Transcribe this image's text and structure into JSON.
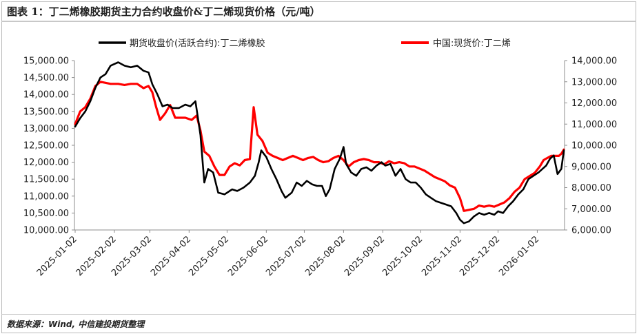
{
  "title": "图表 1：丁二烯橡胶期货主力合约收盘价&丁二烯现货价格（元/吨）",
  "source": "数据来源：Wind, 中信建投期货整理",
  "chart_data": {
    "type": "line",
    "grid": false,
    "legend_placement": "top",
    "x_tick_labels": [
      "2025-01-02",
      "2025-02-02",
      "2025-03-02",
      "2025-04-02",
      "2025-05-02",
      "2025-06-02",
      "2025-07-02",
      "2025-08-02",
      "2025-09-02",
      "2025-10-02",
      "2025-11-02",
      "2025-12-02",
      "2026-01-02"
    ],
    "y_left": {
      "ylim": [
        10000,
        15000
      ],
      "tick_labels": [
        "10,000.00",
        "10,500.00",
        "11,000.00",
        "11,500.00",
        "12,000.00",
        "12,500.00",
        "13,000.00",
        "13,500.00",
        "14,000.00",
        "14,500.00",
        "15,000.00"
      ]
    },
    "y_right": {
      "ylim": [
        6000,
        14000
      ],
      "tick_labels": [
        "6,000.00",
        "7,000.00",
        "8,000.00",
        "9,000.00",
        "10,000.00",
        "11,000.00",
        "12,000.00",
        "13,000.00",
        "14,000.00"
      ]
    },
    "series": [
      {
        "name": "期货收盘价(活跃合约):丁二烯橡胶",
        "color": "#000000",
        "axis": "left",
        "points": [
          [
            "2025-01-02",
            13050
          ],
          [
            "2025-01-06",
            13300
          ],
          [
            "2025-01-10",
            13500
          ],
          [
            "2025-01-14",
            13800
          ],
          [
            "2025-01-18",
            14200
          ],
          [
            "2025-01-22",
            14500
          ],
          [
            "2025-01-26",
            14600
          ],
          [
            "2025-01-30",
            14850
          ],
          [
            "2025-02-02",
            14900
          ],
          [
            "2025-02-05",
            14950
          ],
          [
            "2025-02-10",
            14850
          ],
          [
            "2025-02-15",
            14800
          ],
          [
            "2025-02-20",
            14850
          ],
          [
            "2025-02-25",
            14700
          ],
          [
            "2025-03-01",
            14650
          ],
          [
            "2025-03-04",
            14300
          ],
          [
            "2025-03-08",
            14000
          ],
          [
            "2025-03-12",
            13650
          ],
          [
            "2025-03-16",
            13700
          ],
          [
            "2025-03-20",
            13600
          ],
          [
            "2025-03-25",
            13600
          ],
          [
            "2025-03-30",
            13700
          ],
          [
            "2025-04-03",
            13650
          ],
          [
            "2025-04-07",
            13800
          ],
          [
            "2025-04-09",
            13300
          ],
          [
            "2025-04-11",
            12800
          ],
          [
            "2025-04-14",
            11400
          ],
          [
            "2025-04-17",
            11800
          ],
          [
            "2025-04-21",
            11700
          ],
          [
            "2025-04-25",
            11100
          ],
          [
            "2025-04-30",
            11050
          ],
          [
            "2025-05-06",
            11200
          ],
          [
            "2025-05-10",
            11150
          ],
          [
            "2025-05-15",
            11250
          ],
          [
            "2025-05-20",
            11400
          ],
          [
            "2025-05-24",
            11600
          ],
          [
            "2025-05-27",
            12000
          ],
          [
            "2025-05-29",
            12350
          ],
          [
            "2025-06-02",
            12150
          ],
          [
            "2025-06-06",
            11800
          ],
          [
            "2025-06-10",
            11500
          ],
          [
            "2025-06-14",
            11150
          ],
          [
            "2025-06-17",
            10950
          ],
          [
            "2025-06-22",
            11100
          ],
          [
            "2025-06-26",
            11400
          ],
          [
            "2025-06-30",
            11300
          ],
          [
            "2025-07-04",
            11450
          ],
          [
            "2025-07-08",
            11350
          ],
          [
            "2025-07-12",
            11300
          ],
          [
            "2025-07-16",
            11300
          ],
          [
            "2025-07-19",
            11000
          ],
          [
            "2025-07-22",
            11200
          ],
          [
            "2025-07-26",
            11800
          ],
          [
            "2025-07-30",
            12100
          ],
          [
            "2025-08-02",
            12450
          ],
          [
            "2025-08-04",
            11950
          ],
          [
            "2025-08-08",
            11700
          ],
          [
            "2025-08-12",
            11600
          ],
          [
            "2025-08-16",
            11800
          ],
          [
            "2025-08-20",
            11850
          ],
          [
            "2025-08-24",
            11750
          ],
          [
            "2025-08-28",
            11900
          ],
          [
            "2025-09-01",
            12000
          ],
          [
            "2025-09-04",
            11900
          ],
          [
            "2025-09-08",
            11950
          ],
          [
            "2025-09-12",
            11600
          ],
          [
            "2025-09-16",
            11800
          ],
          [
            "2025-09-20",
            11500
          ],
          [
            "2025-09-24",
            11400
          ],
          [
            "2025-09-28",
            11400
          ],
          [
            "2025-10-02",
            11250
          ],
          [
            "2025-10-06",
            11050
          ],
          [
            "2025-10-10",
            10950
          ],
          [
            "2025-10-14",
            10850
          ],
          [
            "2025-10-18",
            10800
          ],
          [
            "2025-10-22",
            10750
          ],
          [
            "2025-10-26",
            10700
          ],
          [
            "2025-10-30",
            10500
          ],
          [
            "2025-11-02",
            10300
          ],
          [
            "2025-11-05",
            10200
          ],
          [
            "2025-11-09",
            10250
          ],
          [
            "2025-11-13",
            10400
          ],
          [
            "2025-11-17",
            10500
          ],
          [
            "2025-11-21",
            10450
          ],
          [
            "2025-11-25",
            10500
          ],
          [
            "2025-11-29",
            10450
          ],
          [
            "2025-12-02",
            10550
          ],
          [
            "2025-12-06",
            10500
          ],
          [
            "2025-12-10",
            10700
          ],
          [
            "2025-12-14",
            10850
          ],
          [
            "2025-12-18",
            11050
          ],
          [
            "2025-12-22",
            11200
          ],
          [
            "2025-12-26",
            11500
          ],
          [
            "2025-12-30",
            11600
          ],
          [
            "2026-01-03",
            11700
          ],
          [
            "2026-01-06",
            11800
          ],
          [
            "2026-01-09",
            11900
          ],
          [
            "2026-01-12",
            12100
          ],
          [
            "2026-01-15",
            12200
          ],
          [
            "2026-01-18",
            11650
          ],
          [
            "2026-01-21",
            11800
          ],
          [
            "2026-01-23",
            12350
          ]
        ]
      },
      {
        "name": "中国:现货价:丁二烯",
        "color": "#ff0000",
        "axis": "right",
        "points": [
          [
            "2025-01-02",
            11000
          ],
          [
            "2025-01-06",
            11600
          ],
          [
            "2025-01-10",
            11800
          ],
          [
            "2025-01-14",
            12200
          ],
          [
            "2025-01-18",
            12800
          ],
          [
            "2025-01-22",
            13000
          ],
          [
            "2025-01-26",
            12950
          ],
          [
            "2025-01-30",
            12900
          ],
          [
            "2025-02-05",
            12900
          ],
          [
            "2025-02-10",
            12850
          ],
          [
            "2025-02-15",
            12900
          ],
          [
            "2025-02-20",
            12900
          ],
          [
            "2025-02-25",
            12700
          ],
          [
            "2025-03-01",
            12800
          ],
          [
            "2025-03-04",
            12500
          ],
          [
            "2025-03-07",
            11800
          ],
          [
            "2025-03-10",
            11200
          ],
          [
            "2025-03-14",
            11500
          ],
          [
            "2025-03-18",
            11900
          ],
          [
            "2025-03-22",
            11300
          ],
          [
            "2025-03-26",
            11300
          ],
          [
            "2025-03-30",
            11300
          ],
          [
            "2025-04-04",
            11200
          ],
          [
            "2025-04-08",
            11400
          ],
          [
            "2025-04-11",
            10700
          ],
          [
            "2025-04-14",
            9700
          ],
          [
            "2025-04-18",
            9500
          ],
          [
            "2025-04-22",
            9000
          ],
          [
            "2025-04-26",
            8600
          ],
          [
            "2025-04-30",
            8600
          ],
          [
            "2025-05-04",
            9000
          ],
          [
            "2025-05-08",
            9150
          ],
          [
            "2025-05-12",
            9050
          ],
          [
            "2025-05-16",
            9300
          ],
          [
            "2025-05-20",
            9350
          ],
          [
            "2025-05-23",
            11800
          ],
          [
            "2025-05-26",
            10500
          ],
          [
            "2025-05-30",
            10200
          ],
          [
            "2025-06-03",
            9650
          ],
          [
            "2025-06-07",
            9500
          ],
          [
            "2025-06-11",
            9400
          ],
          [
            "2025-06-15",
            9300
          ],
          [
            "2025-06-19",
            9400
          ],
          [
            "2025-06-23",
            9500
          ],
          [
            "2025-06-27",
            9400
          ],
          [
            "2025-07-01",
            9300
          ],
          [
            "2025-07-05",
            9400
          ],
          [
            "2025-07-09",
            9450
          ],
          [
            "2025-07-13",
            9300
          ],
          [
            "2025-07-17",
            9200
          ],
          [
            "2025-07-21",
            9250
          ],
          [
            "2025-07-25",
            9400
          ],
          [
            "2025-07-29",
            9500
          ],
          [
            "2025-08-02",
            9300
          ],
          [
            "2025-08-06",
            9000
          ],
          [
            "2025-08-10",
            9200
          ],
          [
            "2025-08-14",
            9300
          ],
          [
            "2025-08-18",
            9350
          ],
          [
            "2025-08-22",
            9300
          ],
          [
            "2025-08-26",
            9200
          ],
          [
            "2025-08-30",
            9200
          ],
          [
            "2025-09-03",
            9100
          ],
          [
            "2025-09-07",
            9250
          ],
          [
            "2025-09-11",
            9150
          ],
          [
            "2025-09-15",
            9200
          ],
          [
            "2025-09-19",
            9150
          ],
          [
            "2025-09-23",
            9000
          ],
          [
            "2025-09-27",
            9000
          ],
          [
            "2025-10-01",
            8900
          ],
          [
            "2025-10-05",
            8800
          ],
          [
            "2025-10-09",
            8650
          ],
          [
            "2025-10-13",
            8500
          ],
          [
            "2025-10-17",
            8400
          ],
          [
            "2025-10-21",
            8300
          ],
          [
            "2025-10-25",
            8100
          ],
          [
            "2025-10-29",
            8000
          ],
          [
            "2025-11-02",
            7500
          ],
          [
            "2025-11-05",
            6900
          ],
          [
            "2025-11-09",
            6950
          ],
          [
            "2025-11-13",
            7000
          ],
          [
            "2025-11-17",
            7150
          ],
          [
            "2025-11-21",
            7100
          ],
          [
            "2025-11-25",
            7150
          ],
          [
            "2025-11-29",
            7100
          ],
          [
            "2025-12-03",
            7200
          ],
          [
            "2025-12-07",
            7300
          ],
          [
            "2025-12-11",
            7500
          ],
          [
            "2025-12-15",
            7800
          ],
          [
            "2025-12-19",
            8000
          ],
          [
            "2025-12-23",
            8400
          ],
          [
            "2025-12-27",
            8550
          ],
          [
            "2025-12-31",
            8700
          ],
          [
            "2026-01-04",
            9000
          ],
          [
            "2026-01-07",
            9300
          ],
          [
            "2026-01-10",
            9400
          ],
          [
            "2026-01-13",
            9500
          ],
          [
            "2026-01-16",
            9500
          ],
          [
            "2026-01-19",
            9500
          ],
          [
            "2026-01-21",
            9600
          ],
          [
            "2026-01-23",
            9800
          ]
        ]
      }
    ]
  }
}
